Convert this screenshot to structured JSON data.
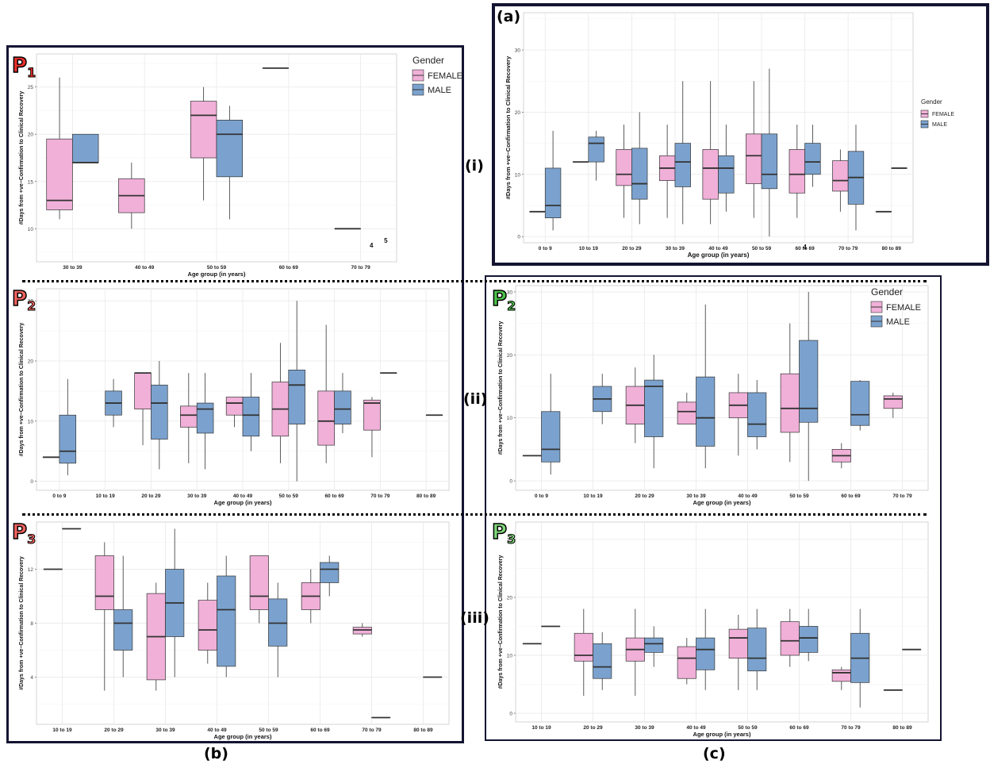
{
  "labels": {
    "panel_a": "(a)",
    "panel_b": "(b)",
    "panel_c": "(c)",
    "row_i": "(i)",
    "row_ii": "(ii)",
    "row_iii": "(iii)",
    "p1": "P",
    "p1_sub": "1",
    "p2b": "P",
    "p2b_sub": "2",
    "p3b": "P",
    "p3b_sub": "3",
    "p2c": "P",
    "p2c_sub": "2",
    "p3c": "P",
    "p3c_sub": "3"
  },
  "colors": {
    "female": "#F0B0D8",
    "male": "#7BA2CE",
    "grid": "#EBEBEB",
    "median": "#333333",
    "frame": "#141432",
    "p_red": "#E8302A",
    "p_green": "#4CC24A"
  },
  "chart_data": [
    {
      "id": "a",
      "type": "box",
      "xlabel": "Age group (in years)",
      "ylabel": "#Days from +ve−Confirmation to Clinical Recovery",
      "categories": [
        "0 to 9",
        "10 to 19",
        "20 to 29",
        "30 to 39",
        "40 to 49",
        "50 to 59",
        "60 to 69",
        "70 to 79",
        "80 to 89"
      ],
      "ylim": [
        -1,
        36
      ],
      "yticks": [
        0,
        10,
        20,
        30
      ],
      "legend": {
        "title": "Gender",
        "entries": [
          "FEMALE",
          "MALE"
        ],
        "position": "right"
      },
      "boxes": [
        {
          "cat": 0,
          "g": "F",
          "min": 4,
          "q1": 4,
          "med": 4,
          "q3": 4,
          "max": 4
        },
        {
          "cat": 0,
          "g": "M",
          "min": 1,
          "q1": 3,
          "med": 5,
          "q3": 11,
          "max": 17
        },
        {
          "cat": 1,
          "g": "F",
          "min": 12,
          "q1": 12,
          "med": 12,
          "q3": 12,
          "max": 12
        },
        {
          "cat": 1,
          "g": "M",
          "min": 9,
          "q1": 12,
          "med": 15,
          "q3": 16,
          "max": 17
        },
        {
          "cat": 2,
          "g": "F",
          "min": 3,
          "q1": 8.2,
          "med": 10,
          "q3": 14,
          "max": 18
        },
        {
          "cat": 2,
          "g": "M",
          "min": 2,
          "q1": 6,
          "med": 8.5,
          "q3": 14.2,
          "max": 20
        },
        {
          "cat": 3,
          "g": "F",
          "min": 3,
          "q1": 9,
          "med": 11,
          "q3": 13,
          "max": 18
        },
        {
          "cat": 3,
          "g": "M",
          "min": 2,
          "q1": 8,
          "med": 12,
          "q3": 15,
          "max": 25
        },
        {
          "cat": 4,
          "g": "F",
          "min": 2,
          "q1": 6,
          "med": 11,
          "q3": 14,
          "max": 25
        },
        {
          "cat": 4,
          "g": "M",
          "min": 4,
          "q1": 7,
          "med": 11,
          "q3": 13,
          "max": 18
        },
        {
          "cat": 5,
          "g": "F",
          "min": 3,
          "q1": 8.5,
          "med": 13,
          "q3": 16.5,
          "max": 25
        },
        {
          "cat": 5,
          "g": "M",
          "min": 0,
          "q1": 7.7,
          "med": 10,
          "q3": 16.5,
          "max": 27
        },
        {
          "cat": 6,
          "g": "F",
          "min": 3,
          "q1": 7,
          "med": 10,
          "q3": 14,
          "max": 18
        },
        {
          "cat": 6,
          "g": "M",
          "min": 8,
          "q1": 10,
          "med": 12,
          "q3": 15,
          "max": 18
        },
        {
          "cat": 7,
          "g": "F",
          "min": 4,
          "q1": 7.3,
          "med": 9,
          "q3": 12.2,
          "max": 14
        },
        {
          "cat": 7,
          "g": "M",
          "min": 1,
          "q1": 5.2,
          "med": 9.5,
          "q3": 13.7,
          "max": 18
        },
        {
          "cat": 8,
          "g": "F",
          "min": 4,
          "q1": 4,
          "med": 4,
          "q3": 4,
          "max": 4
        },
        {
          "cat": 8,
          "g": "M",
          "min": 11,
          "q1": 11,
          "med": 11,
          "q3": 11,
          "max": 11
        }
      ],
      "annotations": [
        {
          "text": "4",
          "cat": 6,
          "y": -2
        }
      ]
    },
    {
      "id": "b1",
      "type": "box",
      "xlabel": "Age group (in years)",
      "ylabel": "#Days from +ve−Confirmation to Clinical Recovery",
      "categories": [
        "30 to 39",
        "40 to 49",
        "50 to 59",
        "60 to 69",
        "70 to 79"
      ],
      "ylim": [
        6.5,
        28.5
      ],
      "yticks": [
        10,
        15,
        20,
        25
      ],
      "legend": {
        "title": "Gender",
        "entries": [
          "FEMALE",
          "MALE"
        ],
        "position": "top-right"
      },
      "boxes": [
        {
          "cat": 0,
          "g": "F",
          "min": 11,
          "q1": 12,
          "med": 13,
          "q3": 19.5,
          "max": 26
        },
        {
          "cat": 0,
          "g": "M",
          "min": 17,
          "q1": 17,
          "med": 17,
          "q3": 20,
          "max": 20
        },
        {
          "cat": 1,
          "g": "F",
          "min": 10,
          "q1": 11.7,
          "med": 13.5,
          "q3": 15.3,
          "max": 17
        },
        {
          "cat": 2,
          "g": "F",
          "min": 13,
          "q1": 17.5,
          "med": 22,
          "q3": 23.5,
          "max": 25
        },
        {
          "cat": 2,
          "g": "M",
          "min": 11,
          "q1": 15.5,
          "med": 20,
          "q3": 21.5,
          "max": 23
        },
        {
          "cat": 3,
          "g": "F",
          "min": 27,
          "q1": 27,
          "med": 27,
          "q3": 27,
          "max": 27
        },
        {
          "cat": 4,
          "g": "F",
          "min": 10,
          "q1": 10,
          "med": 10,
          "q3": 10,
          "max": 10
        }
      ],
      "annotations": [
        {
          "text": "4",
          "cat": 4.15,
          "y": 8
        },
        {
          "text": "5",
          "cat": 4.35,
          "y": 8.5
        }
      ]
    },
    {
      "id": "b2",
      "type": "box",
      "xlabel": "Age group (in years)",
      "ylabel": "#Days from +ve−Confirmation to Clinical Recovery",
      "categories": [
        "0 to 9",
        "10 to 19",
        "20 to 29",
        "30 to 39",
        "40 to 49",
        "50 to 59",
        "60 to 69",
        "70 to 79",
        "80 to 89"
      ],
      "ylim": [
        -1.5,
        32
      ],
      "yticks": [
        0,
        10,
        20,
        30
      ],
      "boxes": [
        {
          "cat": 0,
          "g": "F",
          "min": 4,
          "q1": 4,
          "med": 4,
          "q3": 4,
          "max": 4
        },
        {
          "cat": 0,
          "g": "M",
          "min": 1,
          "q1": 3,
          "med": 5,
          "q3": 11,
          "max": 17
        },
        {
          "cat": 1,
          "g": "M",
          "min": 9,
          "q1": 11,
          "med": 13,
          "q3": 15,
          "max": 17
        },
        {
          "cat": 2,
          "g": "F",
          "min": 6,
          "q1": 12,
          "med": 18,
          "q3": 18,
          "max": 18
        },
        {
          "cat": 2,
          "g": "M",
          "min": 2,
          "q1": 7,
          "med": 13,
          "q3": 16,
          "max": 20
        },
        {
          "cat": 3,
          "g": "F",
          "min": 3,
          "q1": 9,
          "med": 11,
          "q3": 12.5,
          "max": 18
        },
        {
          "cat": 3,
          "g": "M",
          "min": 2,
          "q1": 8,
          "med": 12,
          "q3": 13,
          "max": 18
        },
        {
          "cat": 4,
          "g": "F",
          "min": 9,
          "q1": 11,
          "med": 13,
          "q3": 14,
          "max": 14
        },
        {
          "cat": 4,
          "g": "M",
          "min": 5,
          "q1": 7.5,
          "med": 11,
          "q3": 14,
          "max": 18
        },
        {
          "cat": 5,
          "g": "F",
          "min": 3,
          "q1": 7.5,
          "med": 12,
          "q3": 16.5,
          "max": 23
        },
        {
          "cat": 5,
          "g": "M",
          "min": 0,
          "q1": 9.5,
          "med": 16,
          "q3": 18.5,
          "max": 30
        },
        {
          "cat": 6,
          "g": "F",
          "min": 3,
          "q1": 6,
          "med": 10,
          "q3": 15,
          "max": 26
        },
        {
          "cat": 6,
          "g": "M",
          "min": 8,
          "q1": 9.5,
          "med": 12,
          "q3": 15,
          "max": 18
        },
        {
          "cat": 7,
          "g": "F",
          "min": 4,
          "q1": 8.5,
          "med": 13,
          "q3": 13.5,
          "max": 14
        },
        {
          "cat": 7,
          "g": "M",
          "min": 18,
          "q1": 18,
          "med": 18,
          "q3": 18,
          "max": 18
        },
        {
          "cat": 8,
          "g": "M",
          "min": 11,
          "q1": 11,
          "med": 11,
          "q3": 11,
          "max": 11
        }
      ]
    },
    {
      "id": "b3",
      "type": "box",
      "xlabel": "Age group (in years)",
      "ylabel": "#Days from +ve−Confirmation to Clinical Recovery",
      "categories": [
        "10 to 19",
        "20 to 29",
        "30 to 39",
        "40 to 49",
        "50 to 59",
        "60 to 69",
        "70 to 79",
        "80 to 89"
      ],
      "ylim": [
        0.5,
        15.5
      ],
      "yticks": [
        4,
        8,
        12
      ],
      "boxes": [
        {
          "cat": 0,
          "g": "F",
          "min": 12,
          "q1": 12,
          "med": 12,
          "q3": 12,
          "max": 12
        },
        {
          "cat": 0,
          "g": "M",
          "min": 15,
          "q1": 15,
          "med": 15,
          "q3": 15,
          "max": 15
        },
        {
          "cat": 1,
          "g": "F",
          "min": 3,
          "q1": 9,
          "med": 10,
          "q3": 13,
          "max": 14
        },
        {
          "cat": 1,
          "g": "M",
          "min": 4,
          "q1": 6,
          "med": 8,
          "q3": 9,
          "max": 13
        },
        {
          "cat": 2,
          "g": "F",
          "min": 3,
          "q1": 3.8,
          "med": 7,
          "q3": 10.2,
          "max": 11
        },
        {
          "cat": 2,
          "g": "M",
          "min": 4,
          "q1": 7,
          "med": 9.5,
          "q3": 12,
          "max": 15
        },
        {
          "cat": 3,
          "g": "F",
          "min": 5,
          "q1": 6,
          "med": 7.5,
          "q3": 9.7,
          "max": 11
        },
        {
          "cat": 3,
          "g": "M",
          "min": 4,
          "q1": 4.8,
          "med": 9,
          "q3": 11.5,
          "max": 13
        },
        {
          "cat": 4,
          "g": "F",
          "min": 8,
          "q1": 9,
          "med": 10,
          "q3": 13,
          "max": 13
        },
        {
          "cat": 4,
          "g": "M",
          "min": 4,
          "q1": 6.3,
          "med": 8,
          "q3": 9.8,
          "max": 11
        },
        {
          "cat": 5,
          "g": "F",
          "min": 8,
          "q1": 9,
          "med": 10,
          "q3": 11,
          "max": 12
        },
        {
          "cat": 5,
          "g": "M",
          "min": 10,
          "q1": 11,
          "med": 12,
          "q3": 12.5,
          "max": 13
        },
        {
          "cat": 6,
          "g": "F",
          "min": 7,
          "q1": 7.2,
          "med": 7.5,
          "q3": 7.7,
          "max": 8
        },
        {
          "cat": 6,
          "g": "M",
          "min": 1,
          "q1": 1,
          "med": 1,
          "q3": 1,
          "max": 1
        },
        {
          "cat": 7,
          "g": "M",
          "min": 4,
          "q1": 4,
          "med": 4,
          "q3": 4,
          "max": 4
        }
      ]
    },
    {
      "id": "c2",
      "type": "box",
      "xlabel": "Age group (in years)",
      "ylabel": "#Days from +ve−Confirmation to Clinical Recovery",
      "categories": [
        "0 to 9",
        "10 to 19",
        "20 to 29",
        "30 to 39",
        "40 to 49",
        "50 to 59",
        "60 to 69",
        "70 to 79"
      ],
      "ylim": [
        -1.5,
        31
      ],
      "yticks": [
        0,
        10,
        20,
        30
      ],
      "legend": {
        "title": "Gender",
        "entries": [
          "FEMALE",
          "MALE"
        ],
        "position": "top-right"
      },
      "boxes": [
        {
          "cat": 0,
          "g": "F",
          "min": 4,
          "q1": 4,
          "med": 4,
          "q3": 4,
          "max": 4
        },
        {
          "cat": 0,
          "g": "M",
          "min": 1,
          "q1": 3,
          "med": 5,
          "q3": 11,
          "max": 17
        },
        {
          "cat": 1,
          "g": "M",
          "min": 9,
          "q1": 11,
          "med": 13,
          "q3": 15,
          "max": 17
        },
        {
          "cat": 2,
          "g": "F",
          "min": 6,
          "q1": 9,
          "med": 12,
          "q3": 15,
          "max": 18
        },
        {
          "cat": 2,
          "g": "M",
          "min": 2,
          "q1": 7,
          "med": 15,
          "q3": 16,
          "max": 20
        },
        {
          "cat": 3,
          "g": "F",
          "min": 9,
          "q1": 9,
          "med": 11,
          "q3": 12.5,
          "max": 14
        },
        {
          "cat": 3,
          "g": "M",
          "min": 2,
          "q1": 5.5,
          "med": 10,
          "q3": 16.5,
          "max": 28
        },
        {
          "cat": 4,
          "g": "F",
          "min": 4,
          "q1": 10,
          "med": 12,
          "q3": 14,
          "max": 17
        },
        {
          "cat": 4,
          "g": "M",
          "min": 5,
          "q1": 7,
          "med": 9,
          "q3": 14,
          "max": 16
        },
        {
          "cat": 5,
          "g": "F",
          "min": 3,
          "q1": 7.7,
          "med": 11.5,
          "q3": 17,
          "max": 25
        },
        {
          "cat": 5,
          "g": "M",
          "min": 0,
          "q1": 9.3,
          "med": 11.5,
          "q3": 22.3,
          "max": 30
        },
        {
          "cat": 6,
          "g": "F",
          "min": 2,
          "q1": 3,
          "med": 4,
          "q3": 5,
          "max": 6
        },
        {
          "cat": 6,
          "g": "M",
          "min": 8,
          "q1": 8.8,
          "med": 10.5,
          "q3": 15.8,
          "max": 16
        },
        {
          "cat": 7,
          "g": "F",
          "min": 10,
          "q1": 11.5,
          "med": 13,
          "q3": 13.5,
          "max": 14
        }
      ]
    },
    {
      "id": "c3",
      "type": "box",
      "xlabel": "Age group (in years)",
      "ylabel": "#Days from +ve−Confirmation to Clinical Recovery",
      "categories": [
        "10 to 19",
        "20 to 29",
        "30 to 39",
        "40 to 49",
        "50 to 59",
        "60 to 69",
        "70 to 79",
        "80 to 89"
      ],
      "ylim": [
        -1.5,
        33
      ],
      "yticks": [
        0,
        10,
        20,
        30
      ],
      "boxes": [
        {
          "cat": 0,
          "g": "F",
          "min": 12,
          "q1": 12,
          "med": 12,
          "q3": 12,
          "max": 12
        },
        {
          "cat": 0,
          "g": "M",
          "min": 15,
          "q1": 15,
          "med": 15,
          "q3": 15,
          "max": 15
        },
        {
          "cat": 1,
          "g": "F",
          "min": 3,
          "q1": 9,
          "med": 10,
          "q3": 13.8,
          "max": 18
        },
        {
          "cat": 1,
          "g": "M",
          "min": 4,
          "q1": 6,
          "med": 8,
          "q3": 12,
          "max": 14
        },
        {
          "cat": 2,
          "g": "F",
          "min": 3,
          "q1": 9,
          "med": 11,
          "q3": 13,
          "max": 18
        },
        {
          "cat": 2,
          "g": "M",
          "min": 8,
          "q1": 10.5,
          "med": 12,
          "q3": 13,
          "max": 15
        },
        {
          "cat": 3,
          "g": "F",
          "min": 5,
          "q1": 6,
          "med": 9.5,
          "q3": 11.5,
          "max": 13
        },
        {
          "cat": 3,
          "g": "M",
          "min": 4,
          "q1": 7.5,
          "med": 11,
          "q3": 13,
          "max": 18
        },
        {
          "cat": 4,
          "g": "F",
          "min": 4,
          "q1": 9.5,
          "med": 13,
          "q3": 14.5,
          "max": 17
        },
        {
          "cat": 4,
          "g": "M",
          "min": 4,
          "q1": 7.3,
          "med": 9.5,
          "q3": 14.7,
          "max": 18
        },
        {
          "cat": 5,
          "g": "F",
          "min": 8,
          "q1": 10,
          "med": 12.5,
          "q3": 15.8,
          "max": 18
        },
        {
          "cat": 5,
          "g": "M",
          "min": 9,
          "q1": 10.5,
          "med": 13,
          "q3": 15,
          "max": 18
        },
        {
          "cat": 6,
          "g": "F",
          "min": 4,
          "q1": 5.5,
          "med": 7,
          "q3": 7.5,
          "max": 8
        },
        {
          "cat": 6,
          "g": "M",
          "min": 1,
          "q1": 5.3,
          "med": 9.5,
          "q3": 13.8,
          "max": 18
        },
        {
          "cat": 7,
          "g": "F",
          "min": 4,
          "q1": 4,
          "med": 4,
          "q3": 4,
          "max": 4
        },
        {
          "cat": 7,
          "g": "M",
          "min": 11,
          "q1": 11,
          "med": 11,
          "q3": 11,
          "max": 11
        }
      ]
    }
  ]
}
